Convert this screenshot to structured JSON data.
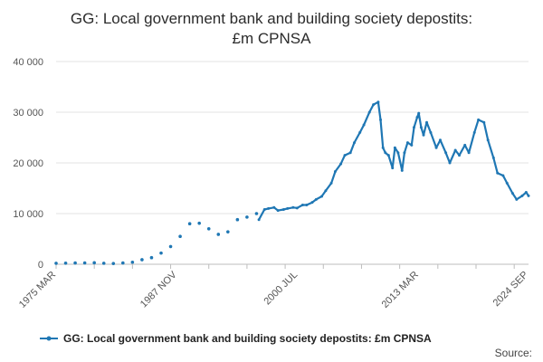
{
  "chart_data": {
    "type": "line",
    "title_lines": [
      "GG: Local government bank and building society depostits:",
      "£m CPNSA"
    ],
    "xlabel": "",
    "ylabel": "",
    "ylim": [
      0,
      40000
    ],
    "y_ticks": [
      0,
      10000,
      20000,
      30000,
      40000
    ],
    "y_tick_labels": [
      "0",
      "10 000",
      "20 000",
      "30 000",
      "40 000"
    ],
    "x_tick_labels": [
      "1975 MAR",
      "1987 NOV",
      "2000 JUL",
      "2013 MAR",
      "2024 SEP"
    ],
    "x_tick_values": [
      "1975-03",
      "1987-11",
      "2000-07",
      "2013-03",
      "2024-09"
    ],
    "x_range": [
      "1975-03",
      "2024-09"
    ],
    "grid": true,
    "legend_position": "bottom",
    "color": "#1f77b4",
    "series": [
      {
        "name": "GG: Local government bank and building society depostits: £m CPNSA",
        "annual_points": [
          [
            "1975-03",
            200
          ],
          [
            "1976-03",
            220
          ],
          [
            "1977-03",
            250
          ],
          [
            "1978-03",
            270
          ],
          [
            "1979-03",
            300
          ],
          [
            "1980-03",
            200
          ],
          [
            "1981-03",
            150
          ],
          [
            "1982-03",
            250
          ],
          [
            "1983-03",
            400
          ],
          [
            "1984-03",
            900
          ],
          [
            "1985-03",
            1300
          ],
          [
            "1986-03",
            2200
          ],
          [
            "1987-03",
            3500
          ],
          [
            "1988-03",
            5500
          ],
          [
            "1989-03",
            8000
          ],
          [
            "1990-03",
            8100
          ],
          [
            "1991-03",
            7000
          ],
          [
            "1992-03",
            5900
          ],
          [
            "1993-03",
            6400
          ],
          [
            "1994-03",
            8800
          ],
          [
            "1995-03",
            9300
          ],
          [
            "1996-03",
            10000
          ]
        ],
        "monthly_points": [
          [
            "1996-06",
            8800
          ],
          [
            "1997-01",
            10800
          ],
          [
            "1997-06",
            11000
          ],
          [
            "1998-01",
            11200
          ],
          [
            "1998-06",
            10600
          ],
          [
            "1999-01",
            10800
          ],
          [
            "1999-06",
            11000
          ],
          [
            "2000-01",
            11200
          ],
          [
            "2000-06",
            11100
          ],
          [
            "2001-01",
            11700
          ],
          [
            "2001-06",
            11700
          ],
          [
            "2002-01",
            12200
          ],
          [
            "2002-06",
            12800
          ],
          [
            "2003-01",
            13400
          ],
          [
            "2003-06",
            14500
          ],
          [
            "2004-01",
            16000
          ],
          [
            "2004-06",
            18300
          ],
          [
            "2005-01",
            19800
          ],
          [
            "2005-06",
            21500
          ],
          [
            "2006-01",
            22000
          ],
          [
            "2006-06",
            24000
          ],
          [
            "2007-01",
            26000
          ],
          [
            "2007-06",
            27500
          ],
          [
            "2008-01",
            30000
          ],
          [
            "2008-06",
            31500
          ],
          [
            "2008-12",
            32000
          ],
          [
            "2009-03",
            28500
          ],
          [
            "2009-06",
            23000
          ],
          [
            "2009-09",
            22000
          ],
          [
            "2010-01",
            21500
          ],
          [
            "2010-06",
            19000
          ],
          [
            "2010-09",
            23000
          ],
          [
            "2011-01",
            22000
          ],
          [
            "2011-06",
            18500
          ],
          [
            "2011-09",
            22000
          ],
          [
            "2012-01",
            24000
          ],
          [
            "2012-06",
            23500
          ],
          [
            "2012-09",
            27000
          ],
          [
            "2013-01",
            29000
          ],
          [
            "2013-03",
            29800
          ],
          [
            "2013-06",
            27000
          ],
          [
            "2013-09",
            25500
          ],
          [
            "2014-01",
            28000
          ],
          [
            "2014-06",
            26000
          ],
          [
            "2015-01",
            23000
          ],
          [
            "2015-06",
            24500
          ],
          [
            "2016-01",
            22000
          ],
          [
            "2016-06",
            20000
          ],
          [
            "2017-01",
            22500
          ],
          [
            "2017-06",
            21500
          ],
          [
            "2018-01",
            23500
          ],
          [
            "2018-06",
            22000
          ],
          [
            "2019-01",
            26000
          ],
          [
            "2019-06",
            28500
          ],
          [
            "2020-01",
            28000
          ],
          [
            "2020-06",
            24500
          ],
          [
            "2021-01",
            21000
          ],
          [
            "2021-06",
            18000
          ],
          [
            "2022-01",
            17500
          ],
          [
            "2022-06",
            16000
          ],
          [
            "2023-01",
            14000
          ],
          [
            "2023-06",
            12800
          ],
          [
            "2024-01",
            13500
          ],
          [
            "2024-06",
            14200
          ],
          [
            "2024-09",
            13500
          ]
        ]
      }
    ],
    "source_label": "Source:"
  }
}
